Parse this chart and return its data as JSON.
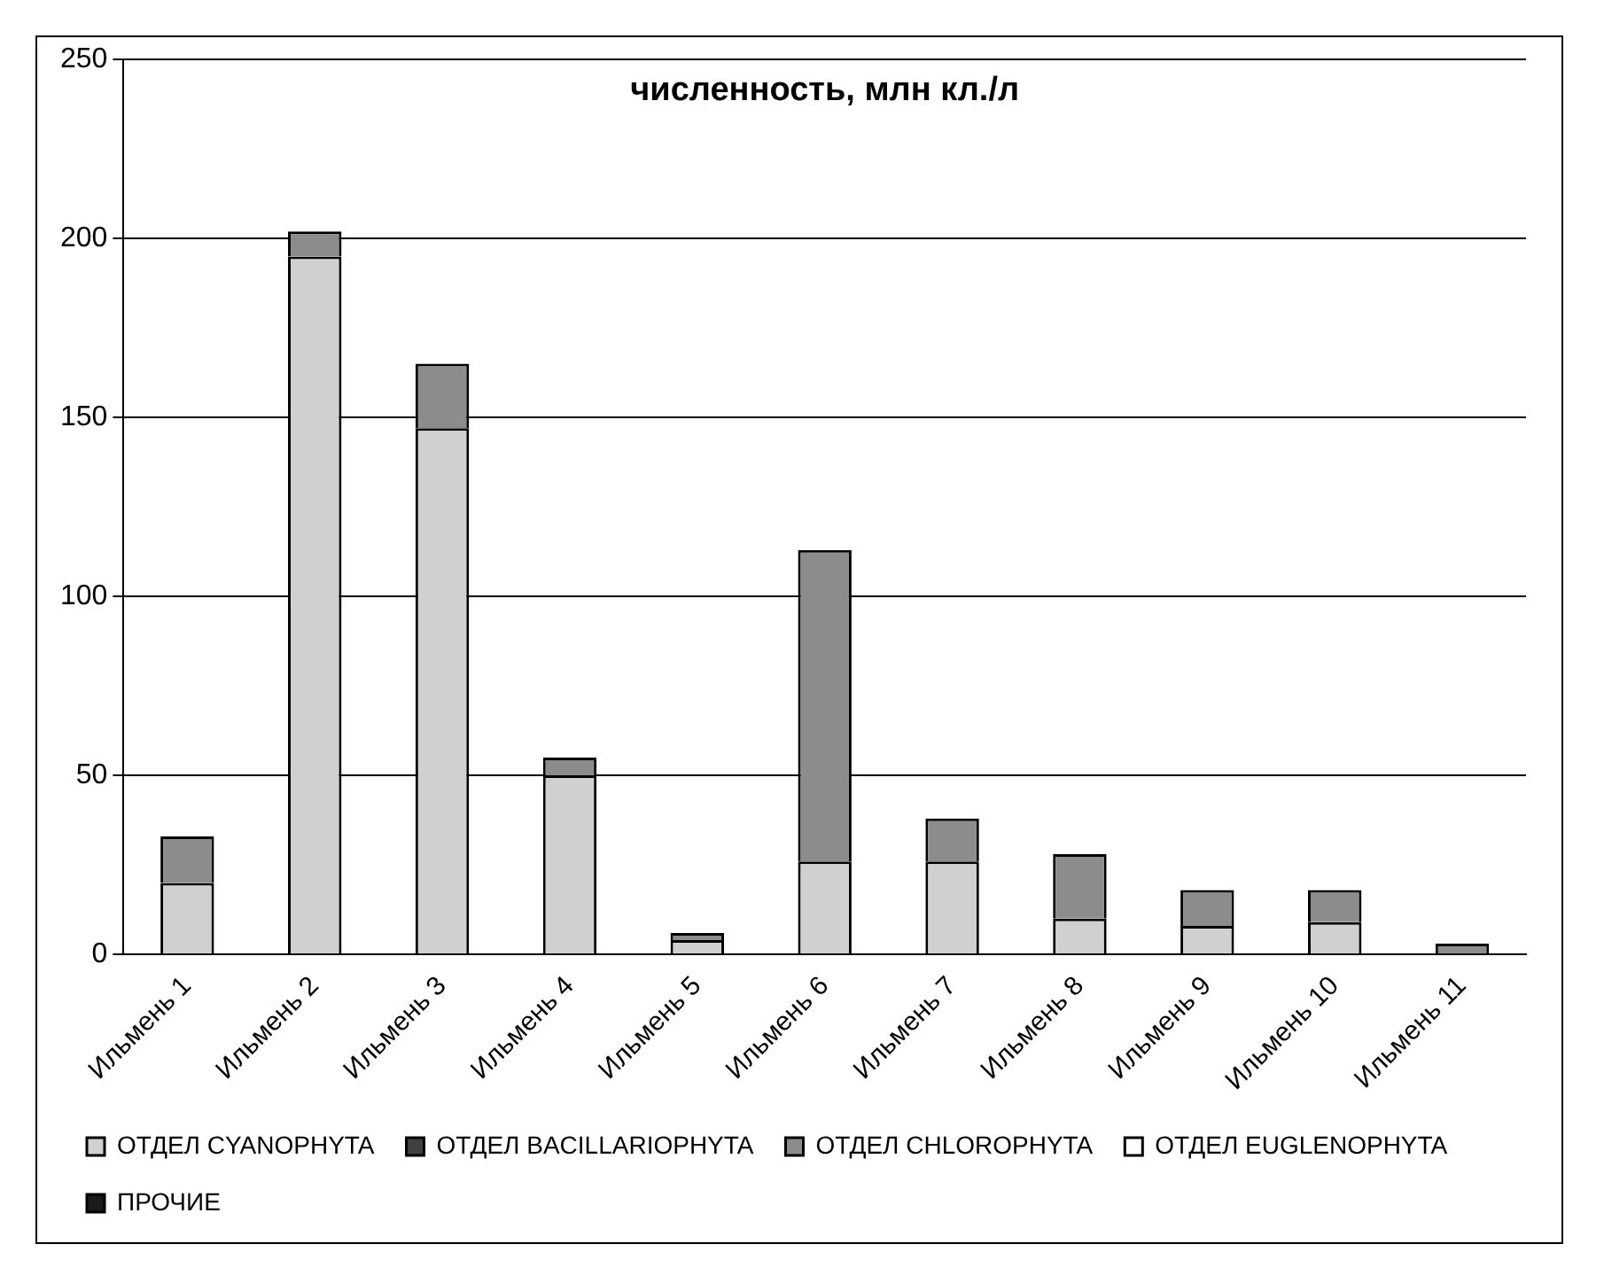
{
  "chart_data": {
    "type": "bar",
    "title": "численность, млн кл./л",
    "stacked": true,
    "categories": [
      "Ильмень 1",
      "Ильмень 2",
      "Ильмень 3",
      "Ильмень 4",
      "Ильмень 5",
      "Ильмень 6",
      "Ильмень 7",
      "Ильмень 8",
      "Ильмень 9",
      "Ильмень 10",
      "Ильмень 11"
    ],
    "series": [
      {
        "name": "ОТДЕЛ CYANOPHYTA",
        "color": "#d0d0d0",
        "values": [
          20,
          195,
          147,
          50,
          4,
          26,
          26,
          10,
          8,
          9,
          0
        ]
      },
      {
        "name": "ОТДЕЛ BACILLARIOPHYTA",
        "color": "#404040",
        "values": [
          0,
          0,
          0,
          0,
          0,
          0,
          0,
          0,
          0,
          0,
          0
        ]
      },
      {
        "name": "ОТДЕЛ CHLOROPHYTA",
        "color": "#8c8c8c",
        "values": [
          13,
          7,
          18,
          5,
          2,
          87,
          12,
          18,
          10,
          9,
          3
        ]
      },
      {
        "name": "ОТДЕЛ EUGLENOPHYTA",
        "color": "#ffffff",
        "values": [
          0,
          0,
          0,
          0,
          0,
          0,
          0,
          0,
          0,
          0,
          0
        ]
      },
      {
        "name": "ПРОЧИЕ",
        "color": "#1a1a1a",
        "values": [
          0,
          0,
          0,
          0,
          0,
          0,
          0,
          0,
          0,
          0,
          0
        ]
      }
    ],
    "ylim": [
      0,
      250
    ],
    "yticks": [
      0,
      50,
      100,
      150,
      200,
      250
    ],
    "grid": "y",
    "legend": "bottom"
  }
}
